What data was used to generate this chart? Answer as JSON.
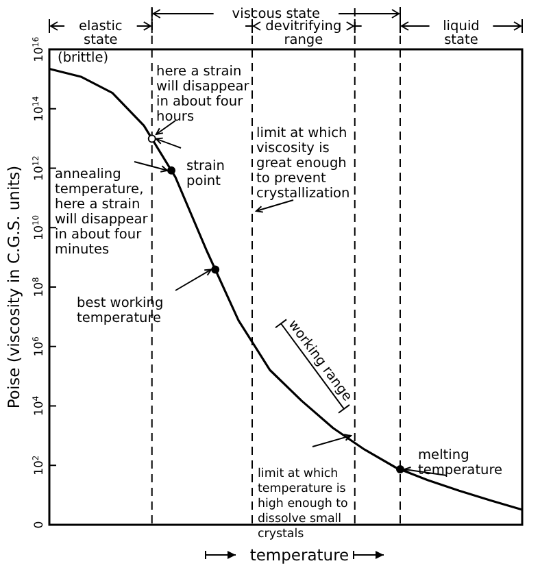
{
  "chart_data": {
    "type": "line",
    "xlabel": "temperature",
    "ylabel": "Poise (viscosity in C.G.S. units)",
    "log": "y",
    "categories": [
      null,
      null,
      null,
      null,
      null,
      null,
      null,
      null,
      null,
      null,
      null,
      null,
      null,
      null,
      null,
      null
    ],
    "series": [
      {
        "color": "#000000",
        "values": [
          2200000000000000.0,
          1200000000000000.0,
          340000000000000.0,
          27000000000000.0,
          500000000000.0,
          1600000000.0,
          7600000.0,
          160000.0,
          15000.0,
          1800.0,
          340,
          83,
          32,
          14,
          6.6,
          3.2
        ]
      }
    ],
    "ylim": [
      0,
      1e+16
    ],
    "yticks": [
      0,
      {
        "value": 100,
        "label": "10$^{2}$"
      },
      {
        "value": 10000.0,
        "label": "10$^{4}$"
      },
      {
        "value": 1000000.0,
        "label": "10$^{6}$"
      },
      {
        "value": 100000000.0,
        "label": "10$^{8}$"
      },
      {
        "value": 10000000000.0,
        "label": "10$^{10}$"
      },
      {
        "value": 1000000000000.0,
        "label": "10$^{12}$"
      },
      {
        "value": 100000000000000.0,
        "label": "10$^{14}$"
      },
      {
        "value": 1e+16,
        "label": "10$^{16}$"
      }
    ],
    "tick_labels": "y",
    "grid": false,
    "annotations": [
      "(brittle)",
      "here a strain will disappear in about four hours",
      "strain point",
      "annealing temperature, here a strain will disappear in about four minutes",
      "limit at which viscosity is great enough to prevent crystallization",
      "best working temperature",
      "working range",
      "limit at which temperature is high enough to dissolve small crystals",
      "melting temperature",
      "elastic state",
      "viscous state",
      "devitrifying range",
      "liquid state"
    ]
  }
}
